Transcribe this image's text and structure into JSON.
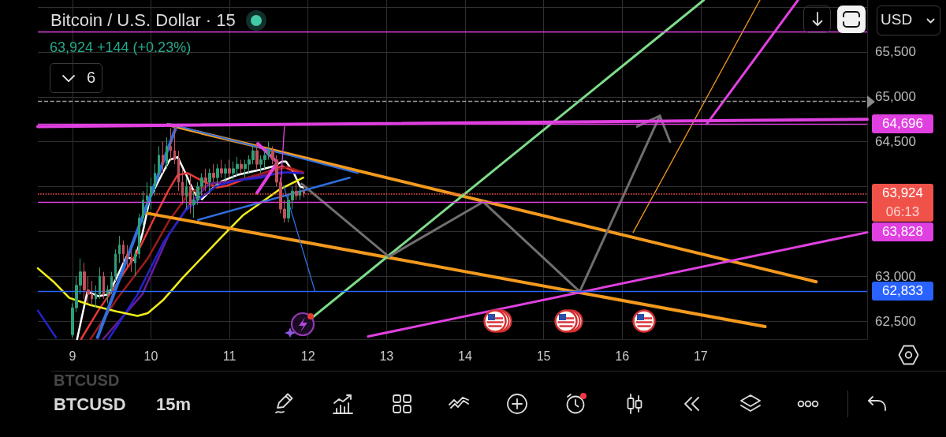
{
  "chart_data": {
    "type": "candlestick",
    "title": "Bitcoin / U.S. Dollar · 15",
    "subtitle": "63,924 +144 (+0.23%)",
    "annotations": [
      "06:13",
      "BTCUSD",
      "BTCUSD",
      "15m",
      "6",
      "USD"
    ],
    "xlim": [
      8.56,
      19.12
    ],
    "xticks": [
      9,
      10,
      11,
      12,
      13,
      14,
      15,
      16,
      17
    ],
    "ylim": [
      62300,
      66080
    ],
    "yticks": [
      {
        "value": 62500,
        "label": "62,500"
      },
      {
        "value": 63000,
        "label": "63,000"
      },
      {
        "value": 63500,
        "label": null
      },
      {
        "value": 64000,
        "label": null
      },
      {
        "value": 64500,
        "label": "64,500"
      },
      {
        "value": 65000,
        "label": "65,000"
      },
      {
        "value": 65500,
        "label": "65,500"
      },
      {
        "value": 66000,
        "label": null
      }
    ],
    "grid": true,
    "marker": "none",
    "x": [
      9.0,
      9.05,
      9.1,
      9.15,
      9.2,
      9.25,
      9.3,
      9.35,
      9.4,
      9.45,
      9.5,
      9.55,
      9.6,
      9.65,
      9.7,
      9.75,
      9.8,
      9.85,
      9.9,
      9.95,
      10.0,
      10.05,
      10.1,
      10.15,
      10.2,
      10.25,
      10.3,
      10.35,
      10.4,
      10.45,
      10.5,
      10.55,
      10.6,
      10.65,
      10.7,
      10.75,
      10.8,
      10.85,
      10.9,
      10.95,
      11.0,
      11.05,
      11.1,
      11.15,
      11.2,
      11.25,
      11.3,
      11.35,
      11.4,
      11.45,
      11.5,
      11.55,
      11.6,
      11.65,
      11.7,
      11.75,
      11.8,
      11.85,
      11.9,
      11.95
    ],
    "ohlc": [
      [
        62350,
        62700,
        62320,
        62650
      ],
      [
        62650,
        63000,
        62600,
        62900
      ],
      [
        62900,
        63200,
        62800,
        63050
      ],
      [
        63050,
        63150,
        62750,
        62850
      ],
      [
        62850,
        63000,
        62700,
        62800
      ],
      [
        62800,
        62950,
        62680,
        62750
      ],
      [
        62750,
        62900,
        62650,
        62800
      ],
      [
        62800,
        63100,
        62750,
        63000
      ],
      [
        63000,
        63050,
        62750,
        62800
      ],
      [
        62800,
        62900,
        62700,
        62850
      ],
      [
        62850,
        63050,
        62800,
        63000
      ],
      [
        63000,
        63300,
        62950,
        63250
      ],
      [
        63250,
        63450,
        63150,
        63350
      ],
      [
        63350,
        63400,
        63150,
        63250
      ],
      [
        63250,
        63350,
        63100,
        63200
      ],
      [
        63200,
        63300,
        63050,
        63150
      ],
      [
        63150,
        63300,
        63000,
        63250
      ],
      [
        63250,
        63700,
        63200,
        63650
      ],
      [
        63650,
        63950,
        63550,
        63850
      ],
      [
        63850,
        64050,
        63700,
        63900
      ],
      [
        63900,
        64100,
        63750,
        64000
      ],
      [
        64000,
        64250,
        63900,
        64150
      ],
      [
        64150,
        64450,
        64100,
        64350
      ],
      [
        64350,
        64500,
        64150,
        64250
      ],
      [
        64250,
        64550,
        64200,
        64450
      ],
      [
        64450,
        64650,
        64300,
        64400
      ],
      [
        64400,
        64670,
        64250,
        64300
      ],
      [
        64300,
        64400,
        63950,
        64050
      ],
      [
        64050,
        64200,
        63800,
        63900
      ],
      [
        63900,
        64100,
        63750,
        64000
      ],
      [
        64000,
        64150,
        63700,
        63800
      ],
      [
        63800,
        63950,
        63650,
        63850
      ],
      [
        63850,
        64050,
        63800,
        64000
      ],
      [
        64000,
        64150,
        63900,
        64100
      ],
      [
        64100,
        64200,
        63950,
        64050
      ],
      [
        64050,
        64200,
        63950,
        64150
      ],
      [
        64150,
        64250,
        64050,
        64100
      ],
      [
        64100,
        64250,
        64000,
        64200
      ],
      [
        64200,
        64300,
        64100,
        64150
      ],
      [
        64150,
        64250,
        64050,
        64200
      ],
      [
        64200,
        64300,
        64100,
        64150
      ],
      [
        64150,
        64280,
        64080,
        64200
      ],
      [
        64200,
        64330,
        64120,
        64250
      ],
      [
        64250,
        64300,
        64150,
        64200
      ],
      [
        64200,
        64300,
        64100,
        64250
      ],
      [
        64250,
        64350,
        64150,
        64300
      ],
      [
        64300,
        64450,
        64250,
        64400
      ],
      [
        64400,
        64480,
        64200,
        64250
      ],
      [
        64250,
        64350,
        64150,
        64300
      ],
      [
        64300,
        64400,
        64200,
        64350
      ],
      [
        64350,
        64500,
        64300,
        64400
      ],
      [
        64400,
        64450,
        64250,
        64300
      ],
      [
        64300,
        64350,
        64000,
        64050
      ],
      [
        64050,
        64100,
        63700,
        63750
      ],
      [
        63750,
        63850,
        63600,
        63650
      ],
      [
        63650,
        63900,
        63600,
        63850
      ],
      [
        63850,
        64000,
        63750,
        63950
      ],
      [
        63950,
        64050,
        63850,
        63900
      ],
      [
        63900,
        64000,
        63850,
        63950
      ],
      [
        63950,
        64000,
        63880,
        63924
      ]
    ],
    "colors": [
      "#2e9e78",
      "#2e9e78",
      "#2e9e78",
      "#c4505a",
      "#c4505a",
      "#c4505a",
      "#2e9e78",
      "#2e9e78",
      "#c4505a",
      "#2e9e78",
      "#2e9e78",
      "#2e9e78",
      "#2e9e78",
      "#c4505a",
      "#c4505a",
      "#c4505a",
      "#2e9e78",
      "#2e9e78",
      "#2e9e78",
      "#2e9e78",
      "#2e9e78",
      "#2e9e78",
      "#2e9e78",
      "#c4505a",
      "#2e9e78",
      "#c4505a",
      "#c4505a",
      "#c4505a",
      "#c4505a",
      "#2e9e78",
      "#c4505a",
      "#2e9e78",
      "#2e9e78",
      "#2e9e78",
      "#c4505a",
      "#2e9e78",
      "#c4505a",
      "#2e9e78",
      "#c4505a",
      "#2e9e78",
      "#c4505a",
      "#2e9e78",
      "#2e9e78",
      "#c4505a",
      "#2e9e78",
      "#2e9e78",
      "#2e9e78",
      "#c4505a",
      "#2e9e78",
      "#2e9e78",
      "#2e9e78",
      "#c4505a",
      "#c4505a",
      "#c4505a",
      "#c4505a",
      "#2e9e78",
      "#2e9e78",
      "#c4505a",
      "#2e9e78",
      "#c4505a"
    ],
    "series": [
      {
        "type": "line",
        "color": "#ffffff",
        "x": [
          9.06,
          9.19,
          9.33,
          9.46,
          9.56,
          9.69,
          9.79,
          9.89,
          9.99,
          10.13,
          10.24,
          10.34,
          10.44,
          10.5,
          10.57,
          10.65,
          10.77,
          10.9,
          11.1,
          11.24,
          11.4,
          11.57,
          11.67,
          11.72,
          11.82,
          11.9,
          11.94
        ],
        "values": [
          62300,
          62830,
          62780,
          62800,
          62980,
          63220,
          63180,
          63470,
          63880,
          64120,
          64300,
          64330,
          64150,
          64030,
          63910,
          63860,
          63970,
          64060,
          64130,
          64160,
          64190,
          64230,
          64280,
          64280,
          64150,
          64000,
          63990
        ]
      },
      {
        "type": "line",
        "color": "#e53935",
        "x": [
          9.11,
          9.33,
          9.56,
          9.83,
          10.06,
          10.23,
          10.34,
          10.47,
          10.64,
          10.84,
          10.97,
          11.24,
          11.47,
          11.67,
          11.77,
          11.94
        ],
        "values": [
          62300,
          62620,
          62910,
          63270,
          63680,
          63970,
          64130,
          64150,
          64070,
          63990,
          64010,
          64100,
          64160,
          64230,
          64190,
          64150
        ]
      },
      {
        "type": "line",
        "color": "#9b1b1b",
        "x": [
          9.23,
          9.56,
          9.96,
          10.23,
          10.49,
          10.79,
          11.09,
          11.49,
          11.74,
          11.94
        ],
        "values": [
          62300,
          62740,
          63200,
          63620,
          63930,
          64040,
          64070,
          64160,
          64220,
          64160
        ]
      },
      {
        "type": "line",
        "color": "#6a1b9a",
        "x": [
          9.39,
          9.89,
          10.23,
          10.5,
          10.74,
          11.09,
          11.49,
          11.74,
          11.94
        ],
        "values": [
          62300,
          62800,
          63470,
          63820,
          64030,
          64070,
          64130,
          64160,
          64150
        ]
      },
      {
        "type": "line",
        "color": "#2323c8",
        "x": [
          8.56,
          8.79,
          9.1,
          9.46,
          9.83,
          10.16,
          10.44,
          10.64,
          10.84,
          11.1,
          11.4,
          11.64,
          11.9
        ],
        "values": [
          62620,
          62320,
          null,
          62300,
          62800,
          63380,
          63730,
          63880,
          64010,
          64070,
          64100,
          64160,
          64150
        ]
      },
      {
        "type": "line",
        "color": "#f2ee1a",
        "x": [
          8.56,
          8.76,
          8.96,
          9.23,
          9.56,
          9.83,
          9.96,
          10.16,
          10.4,
          10.64,
          10.9,
          11.17,
          11.4,
          11.64,
          11.94
        ],
        "values": [
          63090,
          62940,
          62760,
          62680,
          62610,
          62560,
          62590,
          62740,
          62980,
          63200,
          63440,
          63680,
          63820,
          63970,
          64100
        ]
      },
      {
        "type": "line",
        "color": "#f39a1e",
        "x": [
          10.215,
          18.47
        ],
        "values": [
          64690,
          62940
        ]
      },
      {
        "type": "line",
        "color": "#f39a1e",
        "x": [
          9.91,
          17.82
        ],
        "values": [
          63710,
          62440
        ]
      },
      {
        "type": "line",
        "color": "#7ddc8a",
        "x": [
          11.94,
          17.04
        ],
        "values": [
          62460,
          66080
        ]
      },
      {
        "type": "line",
        "color": "#e040e0",
        "x": [
          12.765,
          19.12
        ],
        "values": [
          62330,
          63490
        ]
      },
      {
        "type": "line",
        "color": "#e040e0",
        "x": [
          17.08,
          18.24
        ],
        "values": [
          64700,
          66080
        ]
      },
      {
        "type": "line",
        "color": "#f39a1e",
        "x": [
          16.14,
          17.755
        ],
        "values": [
          63490,
          66080
        ]
      },
      {
        "type": "line",
        "color": "#6f6f6f",
        "x": [
          11.92,
          13.03,
          14.23,
          15.46,
          16.48
        ],
        "values": [
          64030,
          63220,
          63830,
          62830,
          64790
        ]
      },
      {
        "type": "line",
        "color": "#6f6f6f",
        "x": [
          16.19,
          16.48,
          16.61
        ],
        "values": [
          64670,
          64790,
          64500
        ]
      },
      {
        "type": "line",
        "color": "#2f6fe0",
        "x": [
          9.32,
          10.315
        ],
        "values": [
          62320,
          64650
        ]
      },
      {
        "type": "line",
        "color": "#2f6fe0",
        "x": [
          10.235,
          12.635
        ],
        "values": [
          64700,
          64150
        ]
      },
      {
        "type": "line",
        "color": "#2f6fe0",
        "x": [
          10.6,
          12.53
        ],
        "values": [
          63630,
          64100
        ]
      },
      {
        "type": "line",
        "color": "#2f6fe0",
        "x": [
          11.69,
          12.09
        ],
        "values": [
          64010,
          62830
        ]
      },
      {
        "type": "line",
        "color": "#e040e0",
        "x": [
          11.36,
          11.61,
          11.35
        ],
        "values": [
          64480,
          64270,
          63930
        ]
      },
      {
        "type": "line",
        "color": "#e040e0",
        "x": [
          11.7,
          11.64
        ],
        "values": [
          64670,
          63840
        ]
      },
      {
        "type": "line",
        "color": "#e040e0",
        "x": [
          8.56,
          19.12
        ],
        "values": [
          64670,
          64750
        ]
      }
    ],
    "ref_lines": [
      {
        "axis": "y",
        "value": 64696,
        "label": "64,696",
        "color": "#e040e0"
      },
      {
        "axis": "y",
        "value": 63924,
        "label": "63,924",
        "color": "#f0524a",
        "line_style": "dotted"
      },
      {
        "axis": "y",
        "value": 63828,
        "label": "63,828",
        "color": "#e040e0"
      },
      {
        "axis": "y",
        "value": 62833,
        "label": "62,833",
        "color": "#2962ff"
      },
      {
        "axis": "y",
        "value": 64950,
        "color": "#9a9a9a",
        "line_style": "dashed"
      },
      {
        "axis": "y",
        "value": 65730,
        "color": "#e040e0"
      }
    ]
  }
}
